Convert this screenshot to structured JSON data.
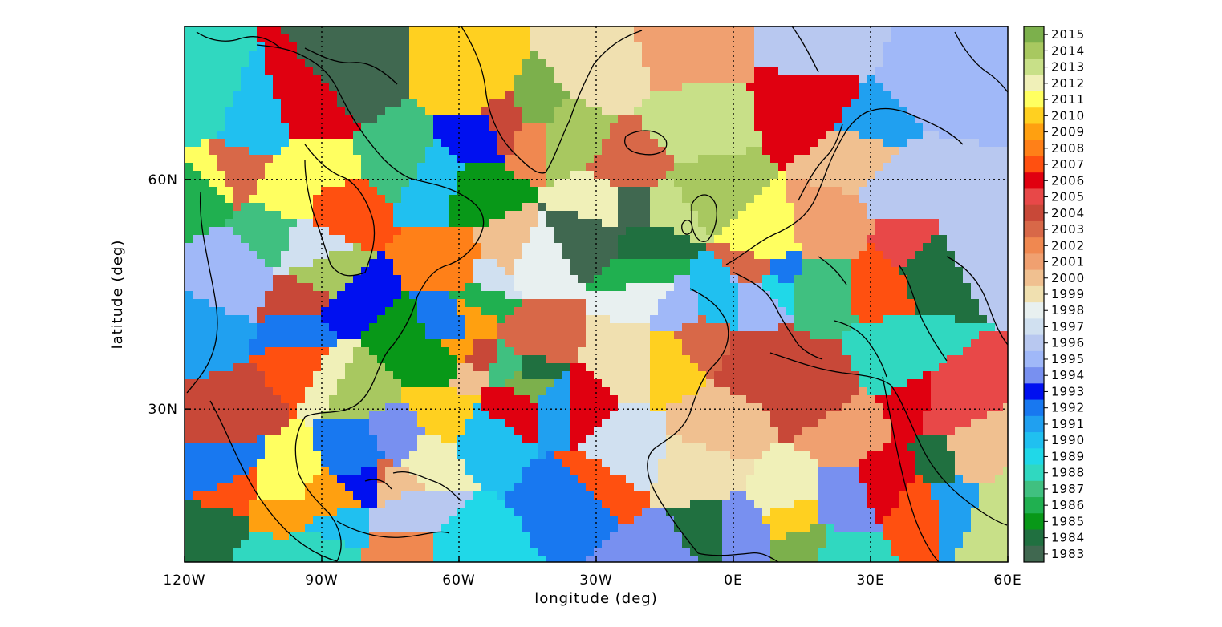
{
  "map": {
    "x_axis": {
      "title": "longitude (deg)",
      "ticks": [
        {
          "value": -120,
          "label": "120W"
        },
        {
          "value": -90,
          "label": "90W"
        },
        {
          "value": -60,
          "label": "60W"
        },
        {
          "value": -30,
          "label": "30W"
        },
        {
          "value": 0,
          "label": "0E"
        },
        {
          "value": 30,
          "label": "30E"
        },
        {
          "value": 60,
          "label": "60E"
        }
      ]
    },
    "y_axis": {
      "title": "latitude (deg)",
      "ticks": [
        {
          "value": 30,
          "label": "30N"
        },
        {
          "value": 60,
          "label": "60N"
        }
      ]
    },
    "extent": {
      "lon_min": -120,
      "lon_max": 60,
      "lat_min": 10,
      "lat_max": 80
    },
    "gridlines": "dotted",
    "colorbar": {
      "placement": "right",
      "entries": [
        {
          "year": "2015",
          "color": "#7cb04c"
        },
        {
          "year": "2014",
          "color": "#a8c860"
        },
        {
          "year": "2013",
          "color": "#c8e088"
        },
        {
          "year": "2012",
          "color": "#f0f0b8"
        },
        {
          "year": "2011",
          "color": "#ffff60"
        },
        {
          "year": "2010",
          "color": "#ffd020"
        },
        {
          "year": "2009",
          "color": "#ffa010"
        },
        {
          "year": "2008",
          "color": "#ff8018"
        },
        {
          "year": "2007",
          "color": "#ff5010"
        },
        {
          "year": "2006",
          "color": "#e00010"
        },
        {
          "year": "2005",
          "color": "#e84848"
        },
        {
          "year": "2004",
          "color": "#c84838"
        },
        {
          "year": "2003",
          "color": "#d86848"
        },
        {
          "year": "2002",
          "color": "#f08850"
        },
        {
          "year": "2001",
          "color": "#f0a070"
        },
        {
          "year": "2000",
          "color": "#f0c090"
        },
        {
          "year": "1999",
          "color": "#f0e0b0"
        },
        {
          "year": "1998",
          "color": "#e8f0f0"
        },
        {
          "year": "1997",
          "color": "#d0e0f0"
        },
        {
          "year": "1996",
          "color": "#b8c8f0"
        },
        {
          "year": "1995",
          "color": "#a0b8f8"
        },
        {
          "year": "1994",
          "color": "#7890f0"
        },
        {
          "year": "1993",
          "color": "#0010f0"
        },
        {
          "year": "1992",
          "color": "#1878f0"
        },
        {
          "year": "1991",
          "color": "#20a0f0"
        },
        {
          "year": "1990",
          "color": "#20c0f0"
        },
        {
          "year": "1989",
          "color": "#20d8e8"
        },
        {
          "year": "1988",
          "color": "#30d8c0"
        },
        {
          "year": "1987",
          "color": "#40c080"
        },
        {
          "year": "1986",
          "color": "#20b050"
        },
        {
          "year": "1985",
          "color": "#089818"
        },
        {
          "year": "1984",
          "color": "#207040"
        },
        {
          "year": "1983",
          "color": "#406850"
        }
      ]
    }
  }
}
